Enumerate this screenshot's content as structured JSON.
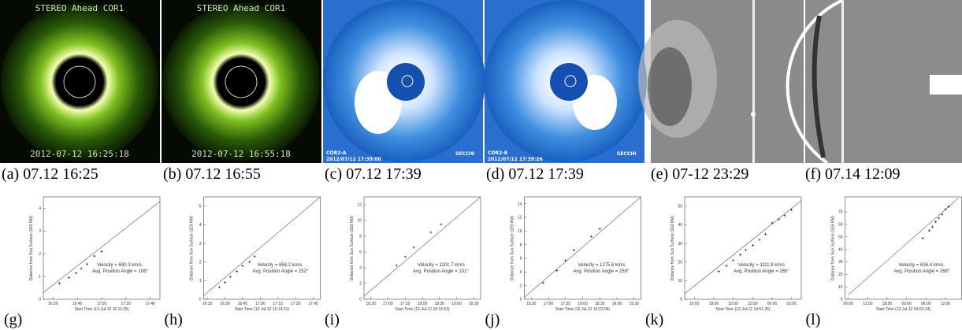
{
  "images": [
    {
      "caption": "(a) 07.12 16:25",
      "top_text": "STEREO Ahead COR1",
      "bottom_text": "2012-07-12 16:25:18"
    },
    {
      "caption": "(b) 07.12 16:55",
      "top_text": "STEREO Ahead COR1",
      "bottom_text": "2012-07-12 16:55:18"
    },
    {
      "caption": "(c) 07.12 17:39",
      "label": "COR2-A",
      "stamp": "2012/07/12 17:39:00",
      "logo": "SECCHI"
    },
    {
      "caption": "(d) 07.12 17:39",
      "label": "COR2-B",
      "stamp": "2012/07/12 17:39:26",
      "logo": "SECCHI"
    },
    {
      "caption": "(e) 07-12 23:29"
    },
    {
      "caption": "(f) 07.14 12:09"
    }
  ],
  "chart_data": [
    {
      "type": "scatter",
      "caption": "(g)",
      "y_label": "Distance from Sun Surface (1E6 KM)",
      "x_label": "Start Time (12-Jul-12 16:11:25)",
      "velocity": "Velocity =      690.3 km/s",
      "angle": "Avg. Position Angle = 108°",
      "x": [
        16.42,
        16.55,
        16.65,
        16.72,
        16.8,
        16.9,
        17.0
      ],
      "values": [
        0.7,
        0.95,
        1.15,
        1.35,
        1.55,
        1.9,
        2.1
      ],
      "fit_x": [
        16.2,
        17.8
      ],
      "fit_y": [
        0.3,
        4.3
      ],
      "xlim": [
        16.2,
        17.8
      ],
      "xticks": [
        {
          "value": 16.333,
          "label": "16:20"
        },
        {
          "value": 16.667,
          "label": "16:40"
        },
        {
          "value": 17,
          "label": "17:00"
        },
        {
          "value": 17.333,
          "label": "17:20"
        },
        {
          "value": 17.667,
          "label": "17:40"
        }
      ],
      "ylim": [
        0,
        4.5
      ],
      "yticks": [
        0,
        1,
        2,
        3,
        4
      ]
    },
    {
      "type": "scatter",
      "caption": "(h)",
      "y_label": "Distance from Sun Surface (1E6 KM)",
      "x_label": "Start Time (12-Jul-12 16:14:21)",
      "velocity": "Velocity =      858.2 km/s",
      "angle": "Avg. Position Angle = 252°",
      "x": [
        16.42,
        16.5,
        16.58,
        16.67,
        16.75,
        16.85,
        16.92
      ],
      "values": [
        0.65,
        0.9,
        1.2,
        1.5,
        1.8,
        2.0,
        2.3
      ],
      "fit_x": [
        16.2,
        17.85
      ],
      "fit_y": [
        0.2,
        5.5
      ],
      "xlim": [
        16.2,
        17.85
      ],
      "xticks": [
        {
          "value": 16.25,
          "label": "16:15"
        },
        {
          "value": 16.5,
          "label": "16:30"
        },
        {
          "value": 16.75,
          "label": "16:45"
        },
        {
          "value": 17,
          "label": "17:00"
        },
        {
          "value": 17.25,
          "label": "17:15"
        },
        {
          "value": 17.5,
          "label": "17:30"
        },
        {
          "value": 17.75,
          "label": "17:45"
        }
      ],
      "ylim": [
        0,
        5.5
      ],
      "yticks": [
        0,
        1,
        2,
        3,
        4,
        5
      ]
    },
    {
      "type": "scatter",
      "caption": "(i)",
      "y_label": "Distance from Sun Surface (1E6 KM)",
      "x_label": "Start Time (12-Jul-12 16:16:53)",
      "velocity": "Velocity =     1101.7 km/s",
      "angle": "Avg. Position Angle = 101°",
      "x": [
        17.25,
        17.5,
        17.75,
        18.25,
        18.55
      ],
      "values": [
        4.3,
        5.4,
        6.6,
        8.5,
        9.5
      ],
      "fit_x": [
        16.3,
        19.7
      ],
      "fit_y": [
        0.4,
        13
      ],
      "xlim": [
        16.3,
        19.7
      ],
      "xticks": [
        {
          "value": 16.5,
          "label": "16:30"
        },
        {
          "value": 17,
          "label": "17:00"
        },
        {
          "value": 17.5,
          "label": "17:30"
        },
        {
          "value": 18,
          "label": "18:00"
        },
        {
          "value": 18.5,
          "label": "18:30"
        },
        {
          "value": 19,
          "label": "19:00"
        },
        {
          "value": 19.5,
          "label": "19:30"
        }
      ],
      "ylim": [
        0,
        13
      ],
      "yticks": [
        0,
        2,
        4,
        6,
        8,
        10,
        12
      ]
    },
    {
      "type": "scatter",
      "caption": "(j)",
      "y_label": "Distance from Sun Surface (1E6 KM)",
      "x_label": "Start Time (12-Jul-12 16:22:06)",
      "velocity": "Velocity =     1275.6 km/s",
      "angle": "Avg. Position Angle = 259°",
      "x": [
        16.85,
        17.25,
        17.5,
        17.75,
        18.25,
        18.5
      ],
      "values": [
        2.4,
        4.2,
        5.7,
        7.2,
        9.2,
        10.3
      ],
      "fit_x": [
        16.3,
        19.7
      ],
      "fit_y": [
        0.3,
        15
      ],
      "xlim": [
        16.3,
        19.7
      ],
      "xticks": [
        {
          "value": 16.5,
          "label": "16:30"
        },
        {
          "value": 17,
          "label": "17:00"
        },
        {
          "value": 17.5,
          "label": "17:30"
        },
        {
          "value": 18,
          "label": "18:00"
        },
        {
          "value": 18.5,
          "label": "18:30"
        },
        {
          "value": 19,
          "label": "19:00"
        },
        {
          "value": 19.5,
          "label": "19:30"
        }
      ],
      "ylim": [
        0,
        15
      ],
      "yticks": [
        0,
        2,
        4,
        6,
        8,
        10,
        12,
        14
      ]
    },
    {
      "type": "scatter",
      "caption": "(k)",
      "y_label": "Distance from Sun Surface (1E6 KM)",
      "x_label": "Start Time (12-Jul-12 14:51:26)",
      "velocity": "Velocity =     1111.8 km/s",
      "angle": "Avg. Position Angle = 265°",
      "x": [
        18.5,
        19.3,
        20,
        20.7,
        21.3,
        22,
        22.7,
        23.3,
        24,
        24.7,
        25.3,
        26
      ],
      "values": [
        15,
        18,
        21,
        24,
        26.5,
        29,
        32,
        35,
        41,
        43,
        45,
        48
      ],
      "fit_x": [
        15,
        27
      ],
      "fit_y": [
        3,
        53
      ],
      "xlim": [
        15,
        27
      ],
      "xticks": [
        {
          "value": 16,
          "label": "16:00"
        },
        {
          "value": 18,
          "label": "18:00"
        },
        {
          "value": 20,
          "label": "20:00"
        },
        {
          "value": 22,
          "label": "22:00"
        },
        {
          "value": 24,
          "label": "00:00"
        },
        {
          "value": 26,
          "label": "02:00"
        }
      ],
      "ylim": [
        0,
        55
      ],
      "yticks": [
        0,
        10,
        20,
        30,
        40,
        50
      ]
    },
    {
      "type": "scatter",
      "caption": "(l)",
      "y_label": "Distance from Sun Surface (1E6 KM)",
      "x_label": "Start Time (12-Jul-12 03:52:24)",
      "velocity": "Velocity =      636.4 km/s",
      "angle": "Avg. Position Angle = 268°",
      "x": [
        29,
        31,
        32,
        33,
        34,
        35,
        36,
        37
      ],
      "values": [
        49,
        55,
        58,
        62,
        65,
        68,
        72,
        74
      ],
      "fit_x": [
        6,
        40
      ],
      "fit_y": [
        3.6,
        81
      ],
      "xlim": [
        5,
        41
      ],
      "xticks": [
        {
          "value": 6,
          "label": "06:00"
        },
        {
          "value": 12,
          "label": "12:00"
        },
        {
          "value": 18,
          "label": "18:00"
        },
        {
          "value": 24,
          "label": "00:00"
        },
        {
          "value": 30,
          "label": "06:00"
        },
        {
          "value": 36,
          "label": "12:00"
        }
      ],
      "ylim": [
        0,
        82
      ],
      "yticks": [
        0,
        10,
        20,
        30,
        40,
        50,
        60,
        70
      ]
    }
  ]
}
